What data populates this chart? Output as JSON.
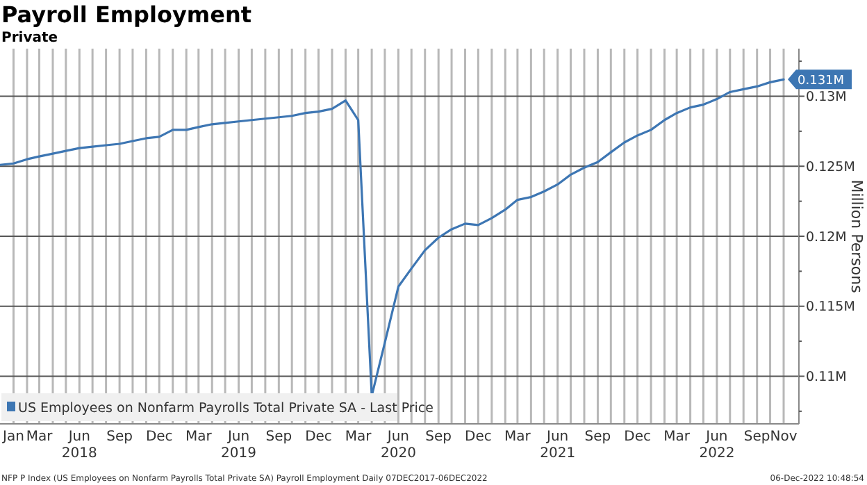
{
  "chart_data": {
    "type": "line",
    "title": "Payroll Employment",
    "subtitle": "Private",
    "ylabel": "Million Persons",
    "x": [
      "2017-12",
      "2018-01",
      "2018-02",
      "2018-03",
      "2018-04",
      "2018-05",
      "2018-06",
      "2018-07",
      "2018-08",
      "2018-09",
      "2018-10",
      "2018-11",
      "2018-12",
      "2019-01",
      "2019-02",
      "2019-03",
      "2019-04",
      "2019-05",
      "2019-06",
      "2019-07",
      "2019-08",
      "2019-09",
      "2019-10",
      "2019-11",
      "2019-12",
      "2020-01",
      "2020-02",
      "2020-03",
      "2020-04",
      "2020-05",
      "2020-06",
      "2020-07",
      "2020-08",
      "2020-09",
      "2020-10",
      "2020-11",
      "2020-12",
      "2021-01",
      "2021-02",
      "2021-03",
      "2021-04",
      "2021-05",
      "2021-06",
      "2021-07",
      "2021-08",
      "2021-09",
      "2021-10",
      "2021-11",
      "2021-12",
      "2022-01",
      "2022-02",
      "2022-03",
      "2022-04",
      "2022-05",
      "2022-06",
      "2022-07",
      "2022-08",
      "2022-09",
      "2022-10",
      "2022-11"
    ],
    "series": [
      {
        "name": "US Employees on Nonfarm Payrolls Total Private SA - Last Price",
        "color": "#3d76b3",
        "values": [
          0.1251,
          0.1252,
          0.1255,
          0.1257,
          0.1259,
          0.1261,
          0.1263,
          0.1264,
          0.1265,
          0.1266,
          0.1268,
          0.127,
          0.1271,
          0.1276,
          0.1276,
          0.1278,
          0.128,
          0.1281,
          0.1282,
          0.1283,
          0.1284,
          0.1285,
          0.1286,
          0.1288,
          0.1289,
          0.1291,
          0.1297,
          0.1283,
          0.1086,
          0.1124,
          0.1164,
          0.1177,
          0.119,
          0.1199,
          0.1205,
          0.1209,
          0.1208,
          0.1213,
          0.1219,
          0.1226,
          0.1228,
          0.1232,
          0.1237,
          0.1244,
          0.1249,
          0.1253,
          0.126,
          0.1267,
          0.1272,
          0.1276,
          0.1283,
          0.1288,
          0.1292,
          0.1294,
          0.1298,
          0.1303,
          0.1305,
          0.1307,
          0.131,
          0.1312
        ],
        "value_labels": [
          null,
          null,
          null,
          null,
          null,
          null,
          null,
          null,
          null,
          null,
          null,
          null,
          null,
          null,
          null,
          null,
          null,
          null,
          null,
          null,
          null,
          null,
          null,
          null,
          null,
          null,
          null,
          null,
          null,
          null,
          null,
          null,
          null,
          null,
          null,
          null,
          null,
          null,
          null,
          null,
          null,
          null,
          null,
          null,
          null,
          null,
          null,
          null,
          null,
          null,
          null,
          null,
          null,
          null,
          null,
          null,
          null,
          null,
          null,
          "0.131M"
        ]
      }
    ],
    "xlim": [
      "2017-12-01",
      "2022-12-06"
    ],
    "xticks": [
      {
        "value": "2018-01",
        "label": "Jan"
      },
      {
        "value": "2018-02",
        "label": null
      },
      {
        "value": "2018-03",
        "label": "Mar"
      },
      {
        "value": "2018-04",
        "label": null
      },
      {
        "value": "2018-05",
        "label": null
      },
      {
        "value": "2018-06",
        "label": "Jun\n2018"
      },
      {
        "value": "2018-07",
        "label": null
      },
      {
        "value": "2018-08",
        "label": null
      },
      {
        "value": "2018-09",
        "label": "Sep"
      },
      {
        "value": "2018-10",
        "label": null
      },
      {
        "value": "2018-11",
        "label": null
      },
      {
        "value": "2018-12",
        "label": "Dec"
      },
      {
        "value": "2019-01",
        "label": null
      },
      {
        "value": "2019-02",
        "label": null
      },
      {
        "value": "2019-03",
        "label": "Mar"
      },
      {
        "value": "2019-04",
        "label": null
      },
      {
        "value": "2019-05",
        "label": null
      },
      {
        "value": "2019-06",
        "label": "Jun\n2019"
      },
      {
        "value": "2019-07",
        "label": null
      },
      {
        "value": "2019-08",
        "label": null
      },
      {
        "value": "2019-09",
        "label": "Sep"
      },
      {
        "value": "2019-10",
        "label": null
      },
      {
        "value": "2019-11",
        "label": null
      },
      {
        "value": "2019-12",
        "label": "Dec"
      },
      {
        "value": "2020-01",
        "label": null
      },
      {
        "value": "2020-02",
        "label": null
      },
      {
        "value": "2020-03",
        "label": "Mar"
      },
      {
        "value": "2020-04",
        "label": null
      },
      {
        "value": "2020-05",
        "label": null
      },
      {
        "value": "2020-06",
        "label": "Jun\n2020"
      },
      {
        "value": "2020-07",
        "label": null
      },
      {
        "value": "2020-08",
        "label": null
      },
      {
        "value": "2020-09",
        "label": "Sep"
      },
      {
        "value": "2020-10",
        "label": null
      },
      {
        "value": "2020-11",
        "label": null
      },
      {
        "value": "2020-12",
        "label": "Dec"
      },
      {
        "value": "2021-01",
        "label": null
      },
      {
        "value": "2021-02",
        "label": null
      },
      {
        "value": "2021-03",
        "label": "Mar"
      },
      {
        "value": "2021-04",
        "label": null
      },
      {
        "value": "2021-05",
        "label": null
      },
      {
        "value": "2021-06",
        "label": "Jun\n2021"
      },
      {
        "value": "2021-07",
        "label": null
      },
      {
        "value": "2021-08",
        "label": null
      },
      {
        "value": "2021-09",
        "label": "Sep"
      },
      {
        "value": "2021-10",
        "label": null
      },
      {
        "value": "2021-11",
        "label": null
      },
      {
        "value": "2021-12",
        "label": "Dec"
      },
      {
        "value": "2022-01",
        "label": null
      },
      {
        "value": "2022-02",
        "label": null
      },
      {
        "value": "2022-03",
        "label": "Mar"
      },
      {
        "value": "2022-04",
        "label": null
      },
      {
        "value": "2022-05",
        "label": null
      },
      {
        "value": "2022-06",
        "label": "Jun\n2022"
      },
      {
        "value": "2022-07",
        "label": null
      },
      {
        "value": "2022-08",
        "label": null
      },
      {
        "value": "2022-09",
        "label": "Sep"
      },
      {
        "value": "2022-10",
        "label": null
      },
      {
        "value": "2022-11",
        "label": "Nov"
      }
    ],
    "ylim": [
      0.1066,
      0.1334
    ],
    "yticks": [
      {
        "value": 0.1075,
        "label": null
      },
      {
        "value": 0.11,
        "label": "0.11M"
      },
      {
        "value": 0.1125,
        "label": null
      },
      {
        "value": 0.115,
        "label": "0.115M"
      },
      {
        "value": 0.1175,
        "label": null
      },
      {
        "value": 0.12,
        "label": "0.12M"
      },
      {
        "value": 0.1225,
        "label": null
      },
      {
        "value": 0.125,
        "label": "0.125M"
      },
      {
        "value": 0.1275,
        "label": null
      },
      {
        "value": 0.13,
        "label": "0.13M"
      },
      {
        "value": 0.1325,
        "label": null
      }
    ],
    "grid": true,
    "legend": "bottom left",
    "marker": "none",
    "line_style": "solid",
    "annotations": [
      "NFP P Index (US Employees on Nonfarm Payrolls Total Private SA) Payroll Employment Daily 07DEC2017-06DEC2022",
      "06-Dec-2022 10:48:54"
    ]
  }
}
